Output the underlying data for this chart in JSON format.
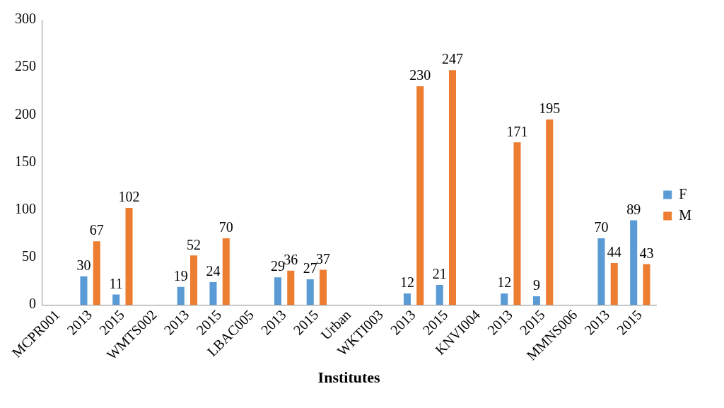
{
  "chart_data": {
    "type": "bar",
    "xlabel": "Institutes",
    "categories": [
      "MCPR001",
      "2013",
      "2015",
      "WMTS002",
      "2013",
      "2015",
      "LBAC005",
      "2013",
      "2015",
      "Urban",
      "WKTI003",
      "2013",
      "2015",
      "KNVI004",
      "2013",
      "2015",
      "MMNS006",
      "2013",
      "2015"
    ],
    "series": [
      {
        "name": "F",
        "color": "#5b9bd5",
        "values": [
          null,
          30,
          11,
          null,
          19,
          24,
          null,
          29,
          27,
          null,
          null,
          12,
          21,
          null,
          12,
          9,
          null,
          70,
          89
        ]
      },
      {
        "name": "M",
        "color": "#ed7d31",
        "values": [
          null,
          67,
          102,
          null,
          52,
          70,
          null,
          36,
          37,
          null,
          null,
          230,
          247,
          null,
          171,
          195,
          null,
          44,
          43
        ]
      }
    ],
    "ylim": [
      0,
      300
    ],
    "yticks": [
      0,
      50,
      100,
      150,
      200,
      250,
      300
    ],
    "grid": false,
    "legend": "right",
    "data_labels": true
  }
}
